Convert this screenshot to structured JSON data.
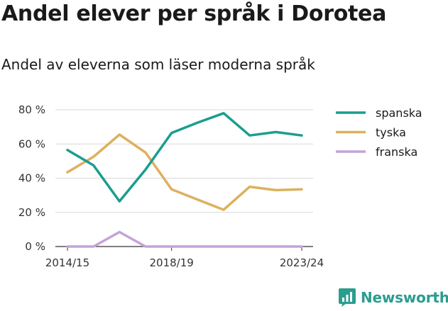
{
  "title": "Andel elever per språk i Dorotea",
  "subtitle": "Andel av eleverna som läser moderna språk",
  "brand": {
    "name": "Newsworthy",
    "icon": "newsworthy-logo-icon",
    "color": "#2a9d8f"
  },
  "chart_data": {
    "type": "line",
    "x": [
      "2014/15",
      "2015/16",
      "2016/17",
      "2017/18",
      "2018/19",
      "2019/20",
      "2020/21",
      "2021/22",
      "2022/23",
      "2023/24"
    ],
    "x_tick_labels": [
      "2014/15",
      "",
      "",
      "",
      "2018/19",
      "",
      "",
      "",
      "",
      "2023/24"
    ],
    "ylim": [
      0,
      80
    ],
    "y_ticks": [
      0,
      20,
      40,
      60,
      80
    ],
    "y_tick_labels": [
      "0 %",
      "20 %",
      "40 %",
      "60 %",
      "80 %"
    ],
    "grid": true,
    "legend": "right",
    "series": [
      {
        "name": "spanska",
        "color": "#1a9e8f",
        "values": [
          56.5,
          47.5,
          26.5,
          45,
          66.5,
          72.5,
          78,
          65,
          67,
          65
        ]
      },
      {
        "name": "tyska",
        "color": "#dcb15e",
        "values": [
          43.5,
          52.5,
          65.5,
          55,
          33.5,
          27.5,
          21.5,
          35,
          33,
          33.5
        ]
      },
      {
        "name": "franska",
        "color": "#c4a3d6",
        "values": [
          0,
          0,
          8.5,
          0,
          0,
          0,
          0,
          0,
          0,
          0
        ]
      }
    ]
  }
}
